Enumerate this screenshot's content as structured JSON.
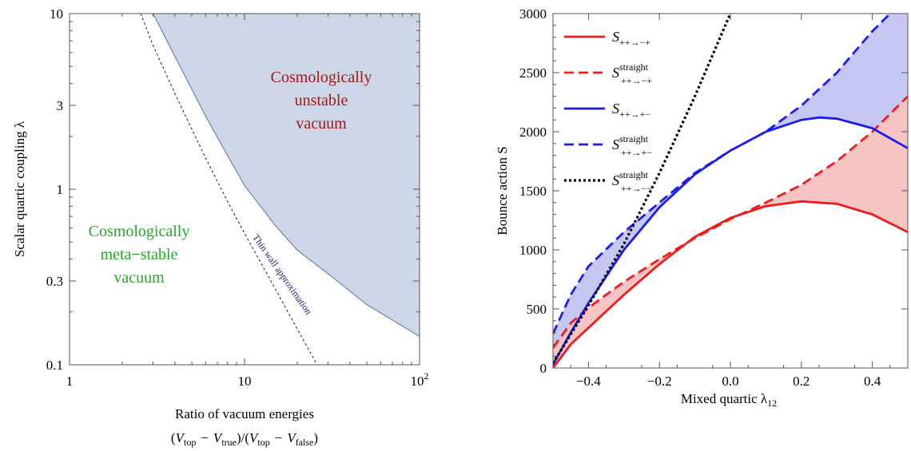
{
  "chart_data": [
    {
      "type": "area",
      "xlabel_line1": "Ratio of vacuum energies",
      "xlabel_line2": {
        "open": "(",
        "V": "V",
        "top": "top",
        "minus": "−",
        "true": "true",
        "slash": ")/(",
        "false": "false",
        "close": ")"
      },
      "ylabel": "Scalar quartic coupling λ",
      "xscale": "log",
      "yscale": "log",
      "xlim": [
        1,
        100
      ],
      "ylim": [
        0.1,
        10
      ],
      "xticks": [
        {
          "v": 1,
          "t": "1"
        },
        {
          "v": 10,
          "t": "10"
        },
        {
          "v": 100,
          "t": "10",
          "sup": "2"
        }
      ],
      "yticks": [
        {
          "v": 0.1,
          "t": "0.1"
        },
        {
          "v": 0.3,
          "t": "0.3"
        },
        {
          "v": 1,
          "t": "1"
        },
        {
          "v": 3,
          "t": "3"
        },
        {
          "v": 10,
          "t": "10"
        }
      ],
      "unstable_boundary": {
        "x": [
          3.0,
          3.5,
          4,
          5,
          6,
          8,
          10,
          15,
          20,
          30,
          50,
          100
        ],
        "y": [
          10,
          7.4,
          5.7,
          3.7,
          2.6,
          1.55,
          1.05,
          0.62,
          0.45,
          0.33,
          0.22,
          0.145
        ]
      },
      "thin_wall": {
        "name": "Thin wall approximation",
        "x": [
          2.55,
          3,
          4,
          5,
          6,
          8,
          10,
          15,
          20,
          26
        ],
        "y": [
          10,
          6.6,
          3.5,
          2.2,
          1.5,
          0.85,
          0.56,
          0.27,
          0.16,
          0.1
        ]
      },
      "region_unstable": [
        "Cosmologically",
        "unstable",
        "vacuum"
      ],
      "region_metastable": [
        "Cosmologically",
        "meta−stable",
        "vacuum"
      ],
      "colors": {
        "fill": "#ccd6e6",
        "edge": "#6f87ad",
        "dotted": "#22227a",
        "unstable_text": "#a01818",
        "metastable_text": "#22aa22"
      }
    },
    {
      "type": "line",
      "xlabel": "Mixed quartic λ",
      "xlabel_sub": "12",
      "ylabel": "Bounce action S",
      "xlim": [
        -0.5,
        0.5
      ],
      "ylim": [
        0,
        3000
      ],
      "xticks": [
        -0.4,
        -0.2,
        0.0,
        0.2,
        0.4
      ],
      "xtick_labels": [
        "−0.4",
        "−0.2",
        "0.0",
        "0.2",
        "0.4"
      ],
      "yticks": [
        0,
        500,
        1000,
        1500,
        2000,
        2500,
        3000
      ],
      "series": [
        {
          "legend_sub": "++→−+",
          "legend_sup": "",
          "color": "#ee1c1c",
          "dash": "solid",
          "x": [
            -0.5,
            -0.45,
            -0.4,
            -0.3,
            -0.2,
            -0.1,
            0,
            0.1,
            0.2,
            0.3,
            0.4,
            0.5
          ],
          "y": [
            0,
            200,
            340,
            620,
            880,
            1110,
            1270,
            1370,
            1410,
            1390,
            1300,
            1150
          ]
        },
        {
          "legend_sub": "++→−+",
          "legend_sup": "straight",
          "color": "#ee1c1c",
          "dash": "dashed",
          "x": [
            -0.5,
            -0.45,
            -0.4,
            -0.3,
            -0.2,
            -0.1,
            0,
            0.1,
            0.2,
            0.3,
            0.4,
            0.5
          ],
          "y": [
            170,
            380,
            510,
            730,
            920,
            1100,
            1260,
            1400,
            1550,
            1750,
            2000,
            2300
          ]
        },
        {
          "legend_sub": "++→+−",
          "legend_sup": "",
          "color": "#1c1cee",
          "dash": "solid",
          "x": [
            -0.5,
            -0.45,
            -0.4,
            -0.3,
            -0.2,
            -0.1,
            0,
            0.1,
            0.2,
            0.25,
            0.3,
            0.4,
            0.5
          ],
          "y": [
            30,
            300,
            550,
            1000,
            1360,
            1640,
            1840,
            2000,
            2100,
            2120,
            2110,
            2030,
            1860
          ]
        },
        {
          "legend_sub": "++→+−",
          "legend_sup": "straight",
          "color": "#1c1cee",
          "dash": "dashed",
          "x": [
            -0.5,
            -0.45,
            -0.4,
            -0.3,
            -0.2,
            -0.1,
            0,
            0.1,
            0.2,
            0.3,
            0.4,
            0.45
          ],
          "y": [
            290,
            620,
            860,
            1150,
            1400,
            1650,
            1840,
            2000,
            2220,
            2500,
            2850,
            3000
          ]
        },
        {
          "legend_sub": "++→−−",
          "legend_sup": "straight",
          "color": "#000000",
          "dash": "dotted",
          "x": [
            -0.5,
            -0.4,
            -0.3,
            -0.2,
            -0.1,
            0.0
          ],
          "y": [
            40,
            530,
            1050,
            1650,
            2300,
            3000
          ]
        }
      ],
      "fill_red": "#f7c4c4",
      "fill_blue": "#c7c7f4"
    }
  ]
}
